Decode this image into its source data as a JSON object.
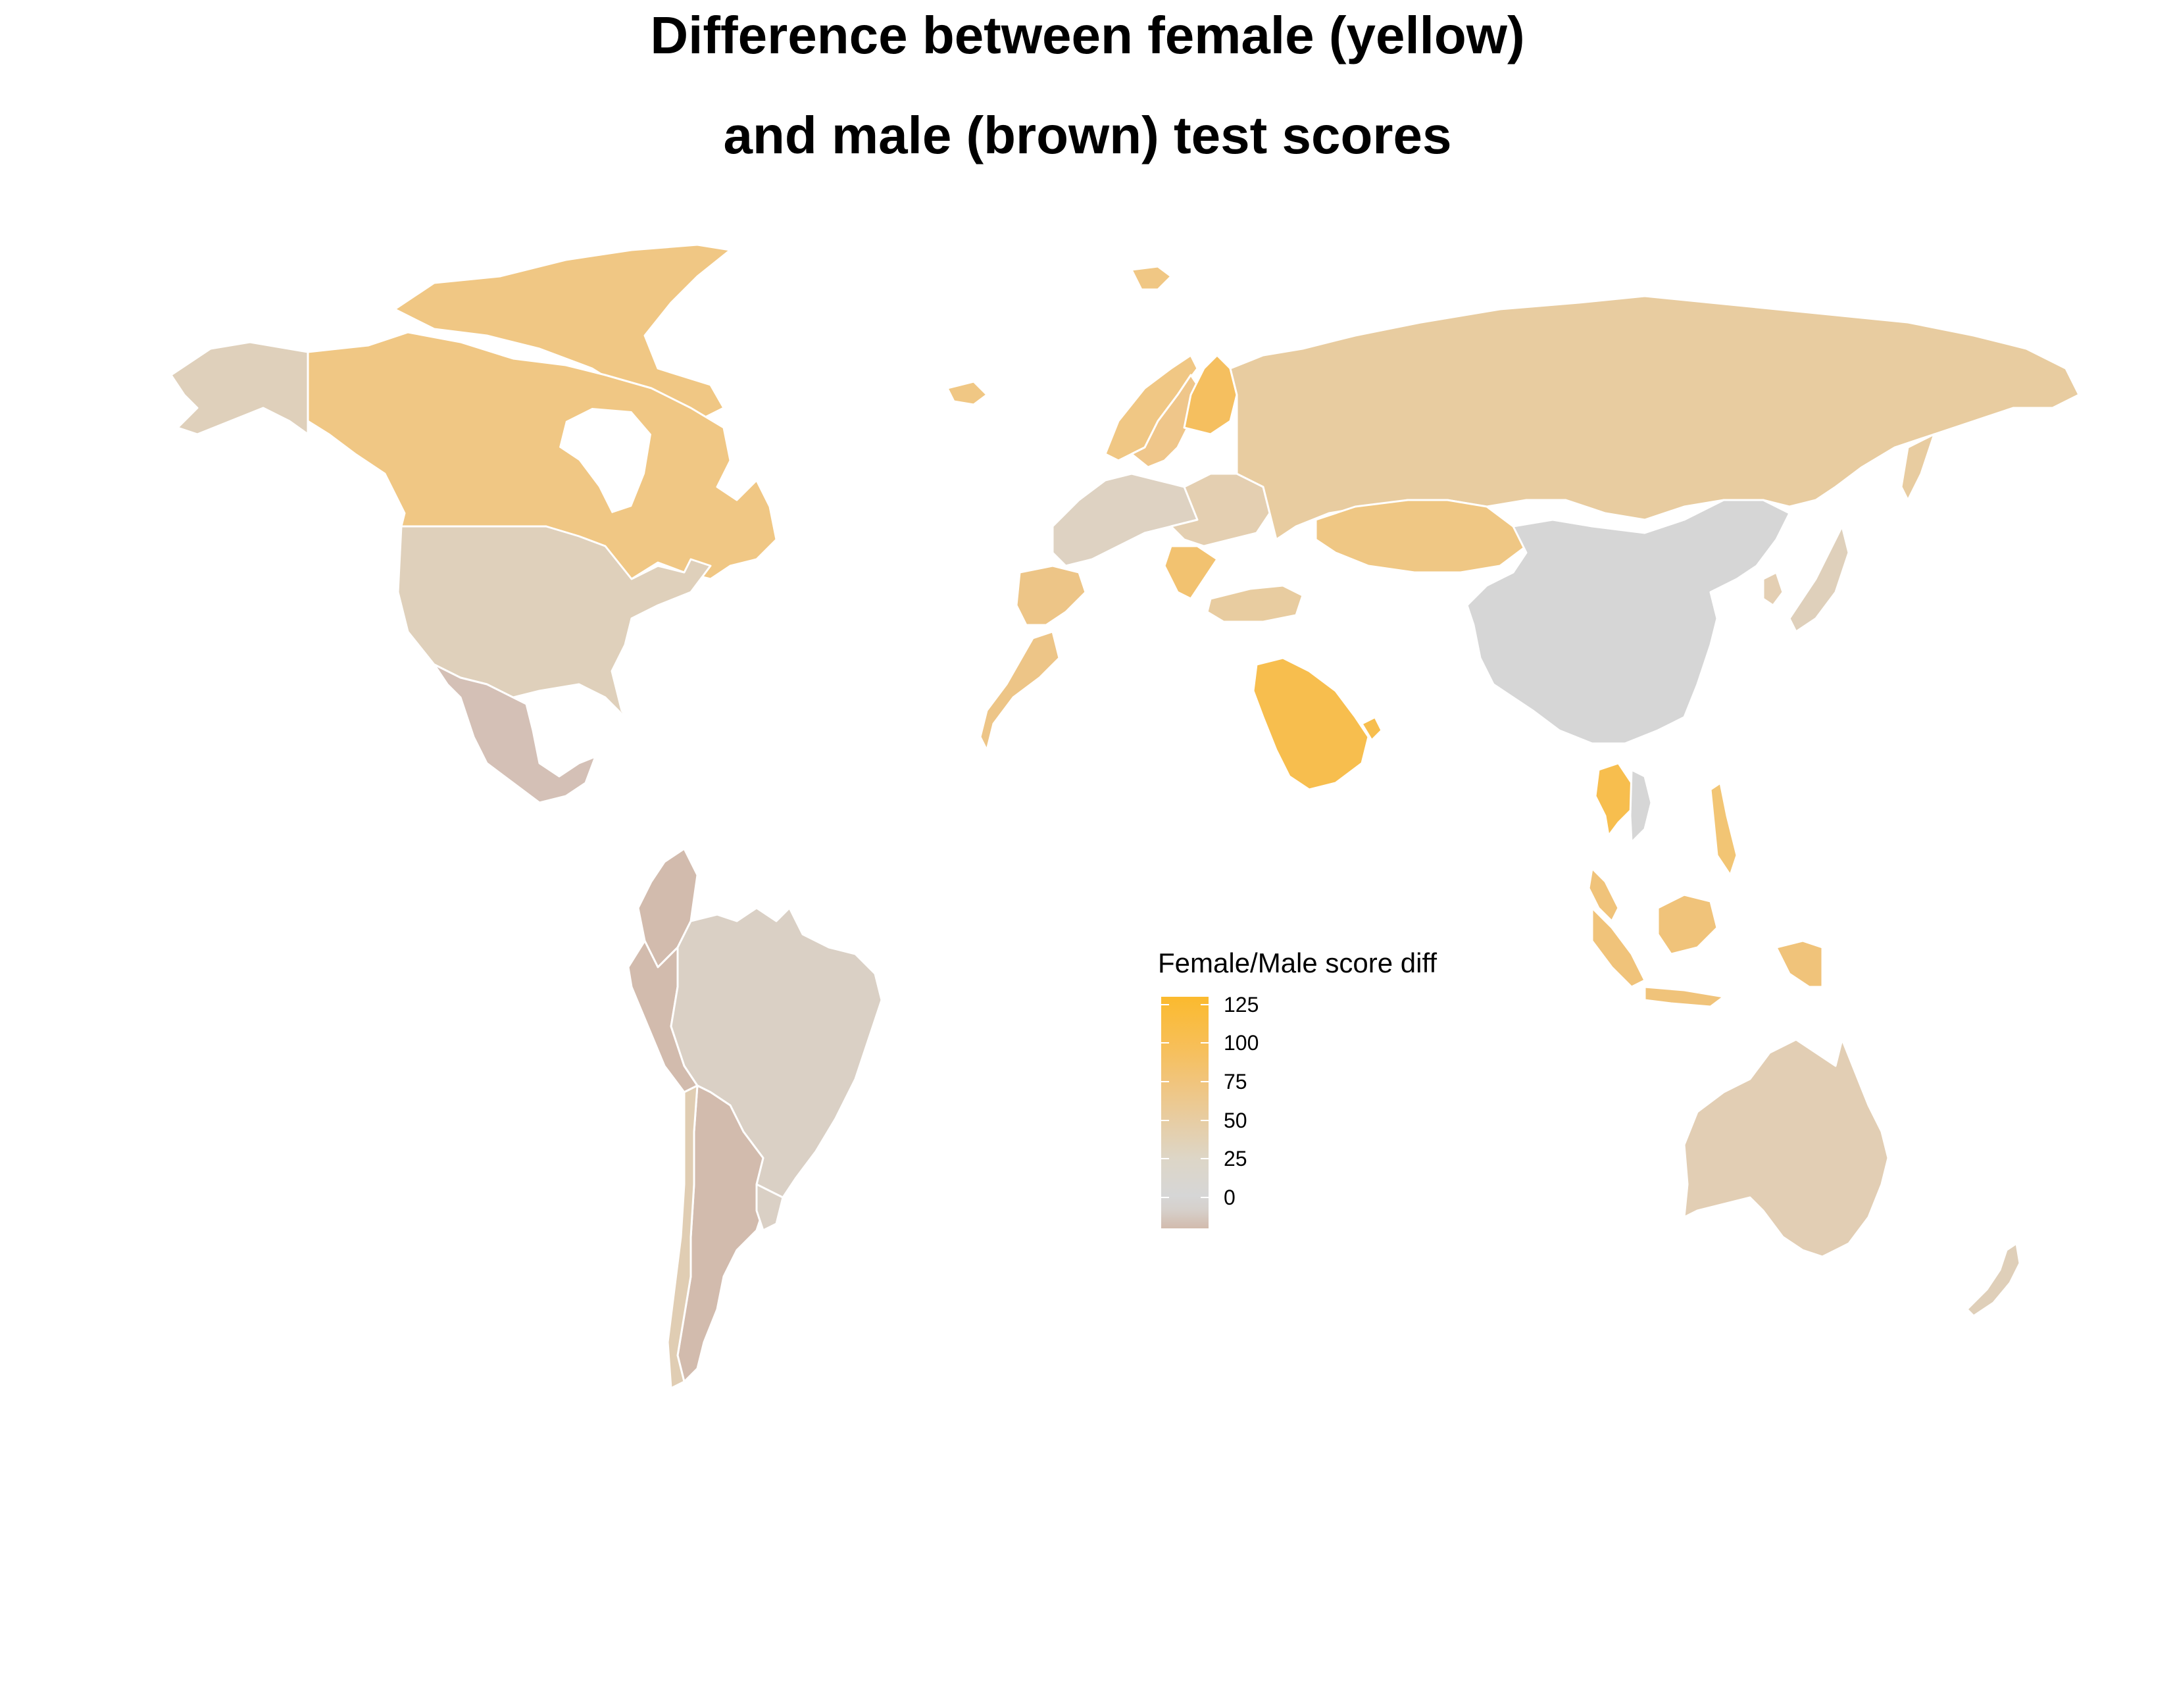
{
  "title": {
    "line1": "Difference between female (yellow)",
    "line2": "and male (brown) test scores"
  },
  "legend": {
    "title": "Female/Male score diff",
    "ticks": [
      "125",
      "100",
      "75",
      "50",
      "25",
      "0"
    ],
    "scale_min": -20,
    "scale_max": 130,
    "colors": {
      "low": "#D2BBAD",
      "zero": "#D6D6D6",
      "mid": "#E8CCA0",
      "high": "#FBBA2E"
    }
  },
  "map": {
    "background": "#ffffff",
    "border_color": "#ffffff",
    "regions": [
      {
        "name": "Canada",
        "fill": "#F0C784"
      },
      {
        "name": "Alaska (USA)",
        "fill": "#DFD0BB"
      },
      {
        "name": "United States",
        "fill": "#DFD0BB"
      },
      {
        "name": "Mexico",
        "fill": "#D4C0B6"
      },
      {
        "name": "Colombia",
        "fill": "#D2BBAD"
      },
      {
        "name": "Peru",
        "fill": "#D2BBAD"
      },
      {
        "name": "Brazil",
        "fill": "#DAD0C5"
      },
      {
        "name": "Argentina",
        "fill": "#D2BBAD"
      },
      {
        "name": "Chile",
        "fill": "#E0CDB3"
      },
      {
        "name": "Uruguay",
        "fill": "#DAD0C5"
      },
      {
        "name": "Iceland",
        "fill": "#F0C784"
      },
      {
        "name": "Greenland",
        "fill": "#F0C784"
      },
      {
        "name": "Norway",
        "fill": "#F0C784"
      },
      {
        "name": "Sweden",
        "fill": "#EFC68A"
      },
      {
        "name": "Finland",
        "fill": "#F5BF5F"
      },
      {
        "name": "Western Europe",
        "fill": "#DED2C2"
      },
      {
        "name": "Eastern Europe",
        "fill": "#E4CFB1"
      },
      {
        "name": "Balkans",
        "fill": "#F2C270"
      },
      {
        "name": "Spain",
        "fill": "#EDC587"
      },
      {
        "name": "Morocco",
        "fill": "#EDC587"
      },
      {
        "name": "Turkey",
        "fill": "#E8CCA0"
      },
      {
        "name": "Russia",
        "fill": "#E8CCA0"
      },
      {
        "name": "Kazakhstan",
        "fill": "#EFC784"
      },
      {
        "name": "China",
        "fill": "#D6D6D6"
      },
      {
        "name": "Saudi Arabia",
        "fill": "#F7BE4E"
      },
      {
        "name": "Qatar",
        "fill": "#F7BE4E"
      },
      {
        "name": "Thailand",
        "fill": "#F7BE4E"
      },
      {
        "name": "Vietnam",
        "fill": "#D6D6D6"
      },
      {
        "name": "Malaysia",
        "fill": "#F0C37A"
      },
      {
        "name": "Indonesia",
        "fill": "#F0C37A"
      },
      {
        "name": "Philippines",
        "fill": "#F2C574"
      },
      {
        "name": "Japan",
        "fill": "#DFD0BB"
      },
      {
        "name": "South Korea",
        "fill": "#E4CFB3"
      },
      {
        "name": "Australia",
        "fill": "#E2CEB4"
      },
      {
        "name": "New Zealand",
        "fill": "#DFCFB9"
      }
    ]
  }
}
